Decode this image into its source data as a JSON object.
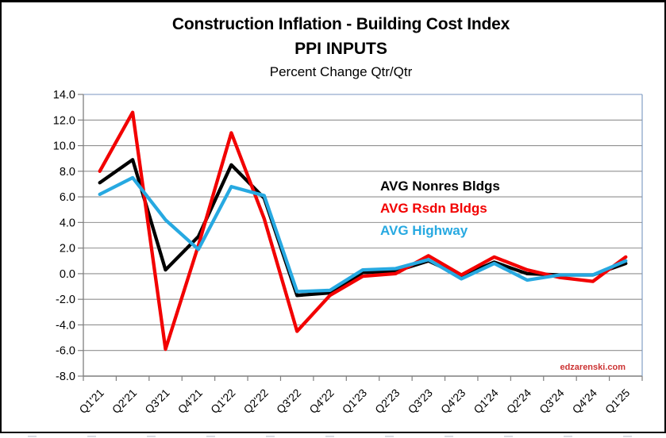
{
  "titles": {
    "line1": "Construction Inflation - Building Cost Index",
    "line2": "PPI INPUTS",
    "line3": "Percent Change Qtr/Qtr"
  },
  "watermark": "edzarenski.com",
  "colors": {
    "grid": "#8f8f8f",
    "axis": "#7f7f7f",
    "plot_border_top_right": "#7896c0",
    "tick_label": "#000000",
    "watermark_red": "#cc3333"
  },
  "chart_data": {
    "type": "line",
    "title": "Construction Inflation - Building Cost Index",
    "subtitle": "PPI INPUTS",
    "subtitle2": "Percent Change Qtr/Qtr",
    "xlabel": "",
    "ylabel": "",
    "ylim": [
      -8.0,
      14.0
    ],
    "ytick_step": 2.0,
    "ytick_labels": [
      "14.0",
      "12.0",
      "10.0",
      "8.0",
      "6.0",
      "4.0",
      "2.0",
      "0.0",
      "-2.0",
      "-4.0",
      "-6.0",
      "-8.0"
    ],
    "grid": true,
    "legend_position": "inside-right",
    "categories": [
      "Q1'21",
      "Q2'21",
      "Q3'21",
      "Q4'21",
      "Q1'22",
      "Q2'22",
      "Q3'22",
      "Q4'22",
      "Q1'23",
      "Q2'23",
      "Q3'23",
      "Q4'23",
      "Q1'24",
      "Q2'24",
      "Q3'24",
      "Q4'24",
      "Q1'25"
    ],
    "series": [
      {
        "name": "AVG Nonres Bldgs",
        "color": "#000000",
        "values": [
          7.1,
          8.9,
          0.3,
          2.9,
          8.5,
          5.9,
          -1.7,
          -1.5,
          0.1,
          0.2,
          1.0,
          -0.2,
          0.9,
          0.0,
          -0.1,
          -0.1,
          0.8
        ]
      },
      {
        "name": "AVG Rsdn Bldgs",
        "color": "#f20000",
        "values": [
          8.0,
          12.6,
          -5.9,
          2.2,
          11.0,
          4.3,
          -4.5,
          -1.7,
          -0.2,
          0.0,
          1.4,
          -0.1,
          1.3,
          0.3,
          -0.3,
          -0.6,
          1.3
        ]
      },
      {
        "name": "AVG Highway",
        "color": "#27a9e1",
        "values": [
          6.2,
          7.5,
          4.2,
          1.9,
          6.8,
          6.1,
          -1.4,
          -1.3,
          0.3,
          0.4,
          1.1,
          -0.4,
          0.8,
          -0.5,
          -0.1,
          -0.1,
          1.0
        ]
      }
    ]
  }
}
